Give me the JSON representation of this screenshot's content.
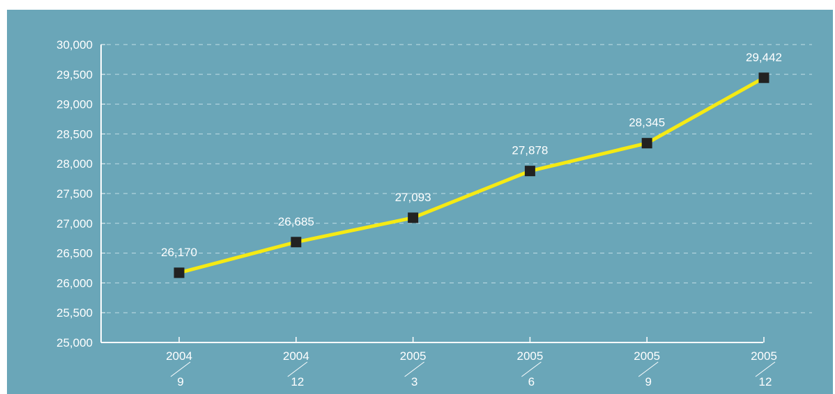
{
  "chart_data": {
    "type": "line",
    "title": "",
    "xlabel": "",
    "ylabel": "",
    "categories": [
      {
        "year": "2004",
        "month": "9"
      },
      {
        "year": "2004",
        "month": "12"
      },
      {
        "year": "2005",
        "month": "3"
      },
      {
        "year": "2005",
        "month": "6"
      },
      {
        "year": "2005",
        "month": "9"
      },
      {
        "year": "2005",
        "month": "12"
      }
    ],
    "series": [
      {
        "values": [
          26170,
          26685,
          27093,
          27878,
          28345,
          29442
        ],
        "labels": [
          "26,170",
          "26,685",
          "27,093",
          "27,878",
          "28,345",
          "29,442"
        ]
      }
    ],
    "ylim": [
      25000,
      30000
    ],
    "y_ticks": [
      "25,000",
      "25,500",
      "26,000",
      "26,500",
      "27,000",
      "27,500",
      "28,000",
      "28,500",
      "29,000",
      "29,500",
      "30,000"
    ],
    "grid": true,
    "colors": {
      "background": "#6aa6b8",
      "line": "#f5ea14",
      "marker": "#222222",
      "gridline": "#d6ecf2",
      "axis": "#ffffff",
      "text": "#ffffff"
    }
  }
}
